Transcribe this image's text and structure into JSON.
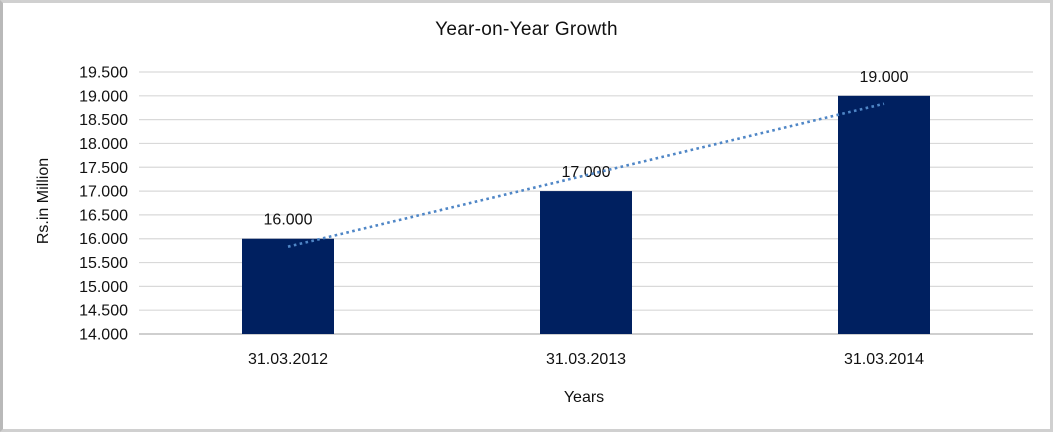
{
  "chart_data": {
    "type": "bar",
    "title": "Year-on-Year Growth",
    "xlabel": "Years",
    "ylabel": "Rs.in Million",
    "categories": [
      "31.03.2012",
      "31.03.2013",
      "31.03.2014"
    ],
    "values": [
      16000,
      17000,
      19000
    ],
    "value_labels": [
      "16.000",
      "17.000",
      "19.000"
    ],
    "ylim": [
      14000,
      19500
    ],
    "y_tick_step": 500,
    "y_tick_values": [
      19500,
      19000,
      18500,
      18000,
      17500,
      17000,
      16500,
      16000,
      15500,
      15000,
      14500,
      14000
    ],
    "y_tick_labels": [
      "19.500",
      "19.000",
      "18.500",
      "18.000",
      "17.500",
      "17.000",
      "16.500",
      "16.000",
      "15.500",
      "15.000",
      "14.500",
      "14.000"
    ],
    "grid": true,
    "legend": "none",
    "bar_color": "#002060",
    "gridline_color": "#d9d9d9",
    "axis_line_color": "#bfbfbf",
    "text_color": "#111111",
    "background": "#ffffff",
    "frame_border_color": "#d0d0d0",
    "trendline": {
      "type": "linear",
      "style": "dotted",
      "color": "#4f86c6",
      "fitted_values": [
        15833,
        17333,
        18833
      ]
    }
  }
}
